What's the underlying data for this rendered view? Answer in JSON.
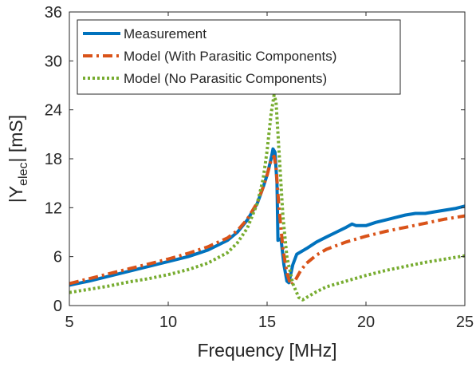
{
  "chart_data": {
    "type": "line",
    "title": "",
    "xlabel": "Frequency [MHz]",
    "ylabel_parts": {
      "pre": "|Y",
      "sub": "elec",
      "post": "| [mS]"
    },
    "xlim": [
      5,
      25
    ],
    "ylim": [
      0,
      36
    ],
    "xticks": [
      5,
      10,
      15,
      20,
      25
    ],
    "yticks": [
      0,
      6,
      12,
      18,
      24,
      30,
      36
    ],
    "grid": false,
    "legend_position": "top-left",
    "series": [
      {
        "name": "Measurement",
        "color": "#0072BD",
        "style": "solid",
        "points": [
          [
            5,
            2.5
          ],
          [
            6,
            3.0
          ],
          [
            7,
            3.6
          ],
          [
            8,
            4.2
          ],
          [
            9,
            4.8
          ],
          [
            10,
            5.4
          ],
          [
            11,
            6.0
          ],
          [
            12,
            6.8
          ],
          [
            13,
            8.0
          ],
          [
            13.5,
            9.0
          ],
          [
            14,
            10.5
          ],
          [
            14.5,
            12.5
          ],
          [
            14.8,
            14.5
          ],
          [
            15.0,
            16.0
          ],
          [
            15.2,
            18.0
          ],
          [
            15.3,
            19.2
          ],
          [
            15.4,
            18.8
          ],
          [
            15.5,
            15.0
          ],
          [
            15.55,
            8.0
          ],
          [
            15.7,
            8.2
          ],
          [
            15.85,
            5.0
          ],
          [
            16.0,
            3.0
          ],
          [
            16.1,
            2.8
          ],
          [
            16.3,
            5.0
          ],
          [
            16.5,
            6.3
          ],
          [
            17.0,
            7.0
          ],
          [
            17.5,
            7.8
          ],
          [
            18.0,
            8.4
          ],
          [
            18.5,
            9.0
          ],
          [
            19.0,
            9.6
          ],
          [
            19.3,
            10.0
          ],
          [
            19.5,
            9.8
          ],
          [
            20.0,
            9.8
          ],
          [
            20.5,
            10.2
          ],
          [
            21.0,
            10.5
          ],
          [
            21.5,
            10.8
          ],
          [
            22.0,
            11.1
          ],
          [
            22.5,
            11.3
          ],
          [
            23.0,
            11.3
          ],
          [
            23.5,
            11.5
          ],
          [
            24.0,
            11.7
          ],
          [
            24.5,
            11.9
          ],
          [
            25,
            12.2
          ]
        ]
      },
      {
        "name": "Model (With Parasitic Components)",
        "color": "#D95319",
        "style": "dashdot",
        "points": [
          [
            5,
            2.7
          ],
          [
            6,
            3.3
          ],
          [
            7,
            3.9
          ],
          [
            8,
            4.5
          ],
          [
            9,
            5.1
          ],
          [
            10,
            5.7
          ],
          [
            11,
            6.4
          ],
          [
            12,
            7.2
          ],
          [
            13,
            8.3
          ],
          [
            13.5,
            9.2
          ],
          [
            14,
            10.6
          ],
          [
            14.5,
            12.6
          ],
          [
            14.8,
            14.5
          ],
          [
            15.0,
            16.0
          ],
          [
            15.2,
            17.8
          ],
          [
            15.35,
            18.3
          ],
          [
            15.45,
            17.0
          ],
          [
            15.6,
            12.0
          ],
          [
            15.8,
            7.0
          ],
          [
            16.0,
            4.0
          ],
          [
            16.2,
            2.5
          ],
          [
            16.4,
            3.0
          ],
          [
            16.7,
            4.3
          ],
          [
            17.0,
            5.2
          ],
          [
            17.5,
            6.2
          ],
          [
            18.0,
            6.9
          ],
          [
            19.0,
            7.8
          ],
          [
            20.0,
            8.5
          ],
          [
            21.0,
            9.1
          ],
          [
            22.0,
            9.6
          ],
          [
            23.0,
            10.1
          ],
          [
            24.0,
            10.6
          ],
          [
            25,
            11.0
          ]
        ]
      },
      {
        "name": "Model (No Parasitic Components)",
        "color": "#77AC30",
        "style": "dotted",
        "points": [
          [
            5,
            1.6
          ],
          [
            6,
            2.0
          ],
          [
            7,
            2.4
          ],
          [
            8,
            2.9
          ],
          [
            9,
            3.3
          ],
          [
            10,
            3.8
          ],
          [
            11,
            4.4
          ],
          [
            12,
            5.2
          ],
          [
            13,
            6.5
          ],
          [
            13.5,
            7.7
          ],
          [
            14,
            9.5
          ],
          [
            14.5,
            12.5
          ],
          [
            14.8,
            15.5
          ],
          [
            15.0,
            19.0
          ],
          [
            15.2,
            23.5
          ],
          [
            15.35,
            25.8
          ],
          [
            15.45,
            25.0
          ],
          [
            15.6,
            19.0
          ],
          [
            15.8,
            11.0
          ],
          [
            16.0,
            6.0
          ],
          [
            16.3,
            2.7
          ],
          [
            16.6,
            1.0
          ],
          [
            16.8,
            0.7
          ],
          [
            17.0,
            1.0
          ],
          [
            17.5,
            1.7
          ],
          [
            18.0,
            2.3
          ],
          [
            19.0,
            3.0
          ],
          [
            20.0,
            3.7
          ],
          [
            21.0,
            4.3
          ],
          [
            22.0,
            4.8
          ],
          [
            23.0,
            5.3
          ],
          [
            24.0,
            5.7
          ],
          [
            25,
            6.1
          ]
        ]
      }
    ]
  }
}
